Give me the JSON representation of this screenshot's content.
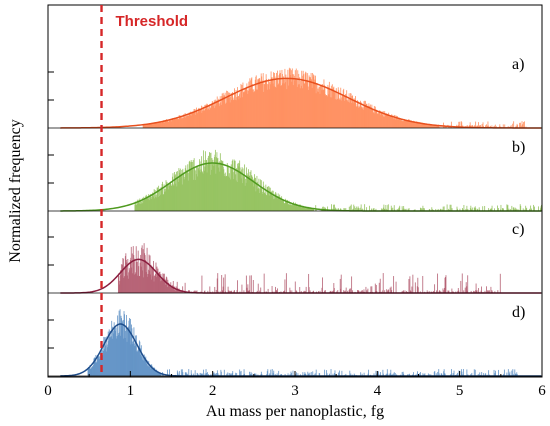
{
  "chart_data": {
    "type": "histogram",
    "xlabel": "Au mass per nanoplastic, fg",
    "ylabel": "Normalized frequency",
    "xlim": [
      0,
      6
    ],
    "xticks": [
      0,
      1,
      2,
      3,
      4,
      5,
      6
    ],
    "xtick_labels": [
      "0",
      "1",
      "2",
      "3",
      "4",
      "5",
      "6"
    ],
    "threshold": {
      "x": 0.65,
      "label": "Threshold",
      "color": "#d62728"
    },
    "panels": [
      {
        "label": "a)",
        "bar_color": "#ff8c5a",
        "fit_color": "#e8501e",
        "mean": 2.9,
        "sd": 0.75,
        "x_start": 1.15,
        "x_end": 5.8,
        "noise": 0.22,
        "peak": 0.62
      },
      {
        "label": "b)",
        "bar_color": "#92c15a",
        "fit_color": "#4f9a1f",
        "mean": 2.0,
        "sd": 0.5,
        "x_start": 1.05,
        "x_end": 6.0,
        "noise": 0.3,
        "peak": 0.6
      },
      {
        "label": "c)",
        "bar_color": "#b35a6e",
        "fit_color": "#8b1e3f",
        "mean": 1.1,
        "sd": 0.22,
        "x_start": 0.85,
        "x_end": 5.5,
        "noise": 0.55,
        "peak": 0.42
      },
      {
        "label": "d)",
        "bar_color": "#5d8fc4",
        "fit_color": "#1f4e8c",
        "mean": 0.88,
        "sd": 0.2,
        "x_start": 0.48,
        "x_end": 5.7,
        "noise": 0.3,
        "peak": 0.65
      }
    ]
  }
}
